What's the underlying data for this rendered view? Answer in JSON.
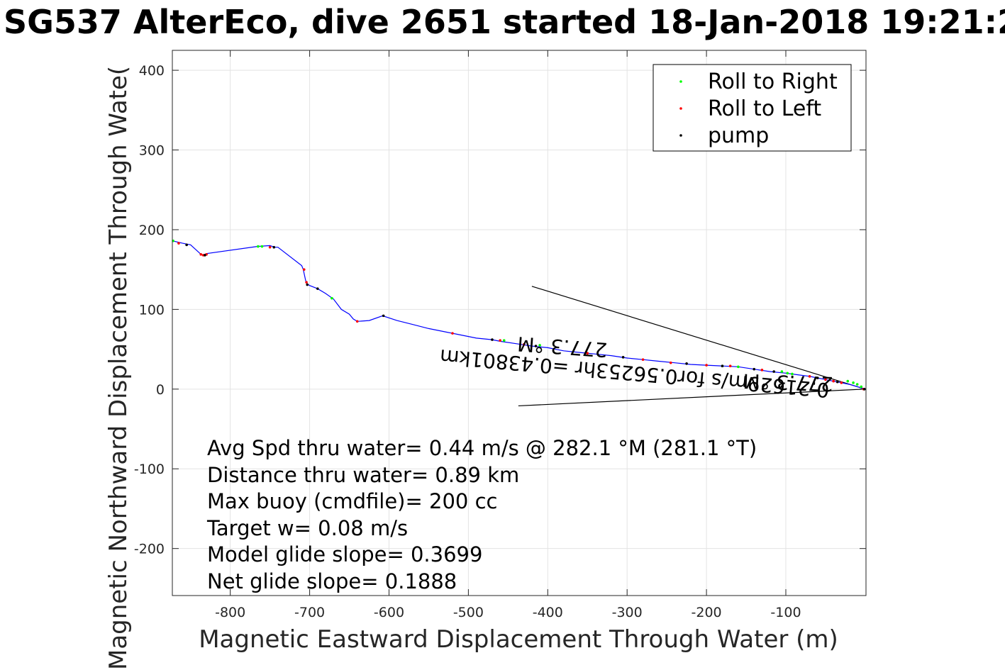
{
  "chart_data": {
    "type": "line",
    "title": "SG537 AlterEco, dive 2651 started 18-Jan-2018 19:21:2",
    "xlabel": "Magnetic Eastward Displacement Through Water (m)",
    "ylabel": "Magnetic Northward Displacement Through Wate(",
    "xlim": [
      -873,
      1
    ],
    "ylim": [
      -259,
      425
    ],
    "xticks": [
      -800,
      -700,
      -600,
      -500,
      -400,
      -300,
      -200,
      -100
    ],
    "yticks": [
      -200,
      -100,
      0,
      100,
      200,
      300,
      400
    ],
    "grid": true,
    "legend_position": "top-right",
    "legend": [
      "Roll to Right",
      "Roll to Left",
      "pump"
    ],
    "series": [
      {
        "name": "",
        "color": "#0000ff",
        "x": [
          -873,
          -860,
          -850,
          -838,
          -835,
          -830,
          -766,
          -750,
          -744,
          -740,
          -710,
          -708,
          -705,
          -703,
          -700,
          -690,
          -680,
          -670,
          -660,
          -650,
          -645,
          -640,
          -625,
          -608,
          -590,
          -570,
          -550,
          -530,
          -510,
          -490,
          -470,
          -460,
          -440,
          -420,
          -400,
          -380,
          -360,
          -340,
          -320,
          -300,
          -280,
          -260,
          -240,
          -220,
          -200,
          -180,
          -160,
          -140,
          -120,
          -100,
          -85,
          -70,
          -60,
          -50,
          -40,
          -30,
          -20,
          -10,
          0
        ],
        "y": [
          186,
          183,
          181,
          170,
          168,
          170,
          179,
          180,
          178,
          178,
          155,
          150,
          136,
          132,
          130,
          126,
          120,
          113,
          100,
          94,
          88,
          85,
          86,
          92,
          86,
          81,
          76,
          72,
          68,
          64,
          62,
          60,
          57,
          54,
          52,
          48,
          46,
          44,
          42,
          39,
          37,
          35,
          33,
          31,
          30,
          29,
          28,
          25,
          22,
          20,
          18,
          16,
          14,
          12,
          10,
          8,
          6,
          3,
          0
        ]
      }
    ],
    "roll_right_points": {
      "color": "#00ff00",
      "x": [
        -872,
        -765,
        -760,
        -672,
        -455,
        -410,
        -180,
        -160,
        -105,
        -98,
        -92,
        -22,
        -15,
        -10,
        -5
      ],
      "y": [
        186,
        179,
        179,
        114,
        61,
        55,
        29,
        28,
        22,
        20,
        19,
        10,
        8,
        6,
        3
      ]
    },
    "roll_left_points": {
      "color": "#ff0000",
      "x": [
        -865,
        -837,
        -834,
        -830,
        -750,
        -707,
        -704,
        -640,
        -520,
        -460,
        -430,
        -350,
        -280,
        -245,
        -200,
        -170,
        -130,
        -70,
        -50,
        -40,
        -30,
        -2
      ],
      "y": [
        183,
        169,
        168,
        169,
        178,
        150,
        134,
        85,
        70,
        61,
        56,
        45,
        37,
        33,
        30,
        29,
        24,
        16,
        12,
        10,
        8,
        0
      ]
    },
    "pump_points": {
      "color": "#000000",
      "x": [
        -855,
        -832,
        -745,
        -703,
        -690,
        -607,
        -470,
        -415,
        -305,
        -225,
        -180,
        -140,
        -115,
        -60,
        -35,
        -1
      ],
      "y": [
        181,
        168,
        178,
        131,
        126,
        92,
        62,
        54,
        40,
        32,
        29,
        25,
        22,
        14,
        9,
        0
      ]
    },
    "wedge_lines": [
      {
        "x": [
          0,
          -420
        ],
        "y": [
          0,
          129
        ]
      },
      {
        "x": [
          0,
          -437
        ],
        "y": [
          0,
          -21
        ]
      }
    ],
    "annotations": [
      "Avg Spd thru water=  0.44 m/s @ 282.1 °M (281.1 °T)",
      "Distance thru water=  0.89 km",
      "Max buoy (cmdfile)= 200 cc",
      "Target w= 0.08 m/s",
      "Model glide slope= 0.3699",
      "Net glide slope= 0.1888"
    ],
    "rotated_labels": [
      "0.21629m/s for0.56253hr =0.43801km",
      "277.3 °M"
    ]
  }
}
